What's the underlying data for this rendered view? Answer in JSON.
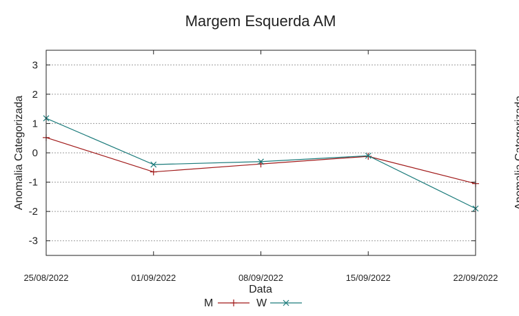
{
  "chart_data": {
    "type": "line",
    "title": "Margem Esquerda AM",
    "xlabel": "Data",
    "ylabel": "Anomalia Categorizada",
    "categories": [
      "25/08/2022",
      "01/09/2022",
      "08/09/2022",
      "15/09/2022",
      "22/09/2022"
    ],
    "ylim": [
      -3.5,
      3.5
    ],
    "yticks": [
      -3,
      -2,
      -1,
      0,
      1,
      2,
      3
    ],
    "grid": "horizontal",
    "legend_position": "bottom",
    "series": [
      {
        "name": "M",
        "values": [
          0.52,
          -0.65,
          -0.38,
          -0.12,
          -1.05
        ],
        "color": "#a01818",
        "marker": "plus"
      },
      {
        "name": "W",
        "values": [
          1.18,
          -0.4,
          -0.3,
          -0.1,
          -1.9
        ],
        "color": "#1a7a7a",
        "marker": "x"
      }
    ],
    "clipped_right_label": "Anomalia Categorizada"
  }
}
